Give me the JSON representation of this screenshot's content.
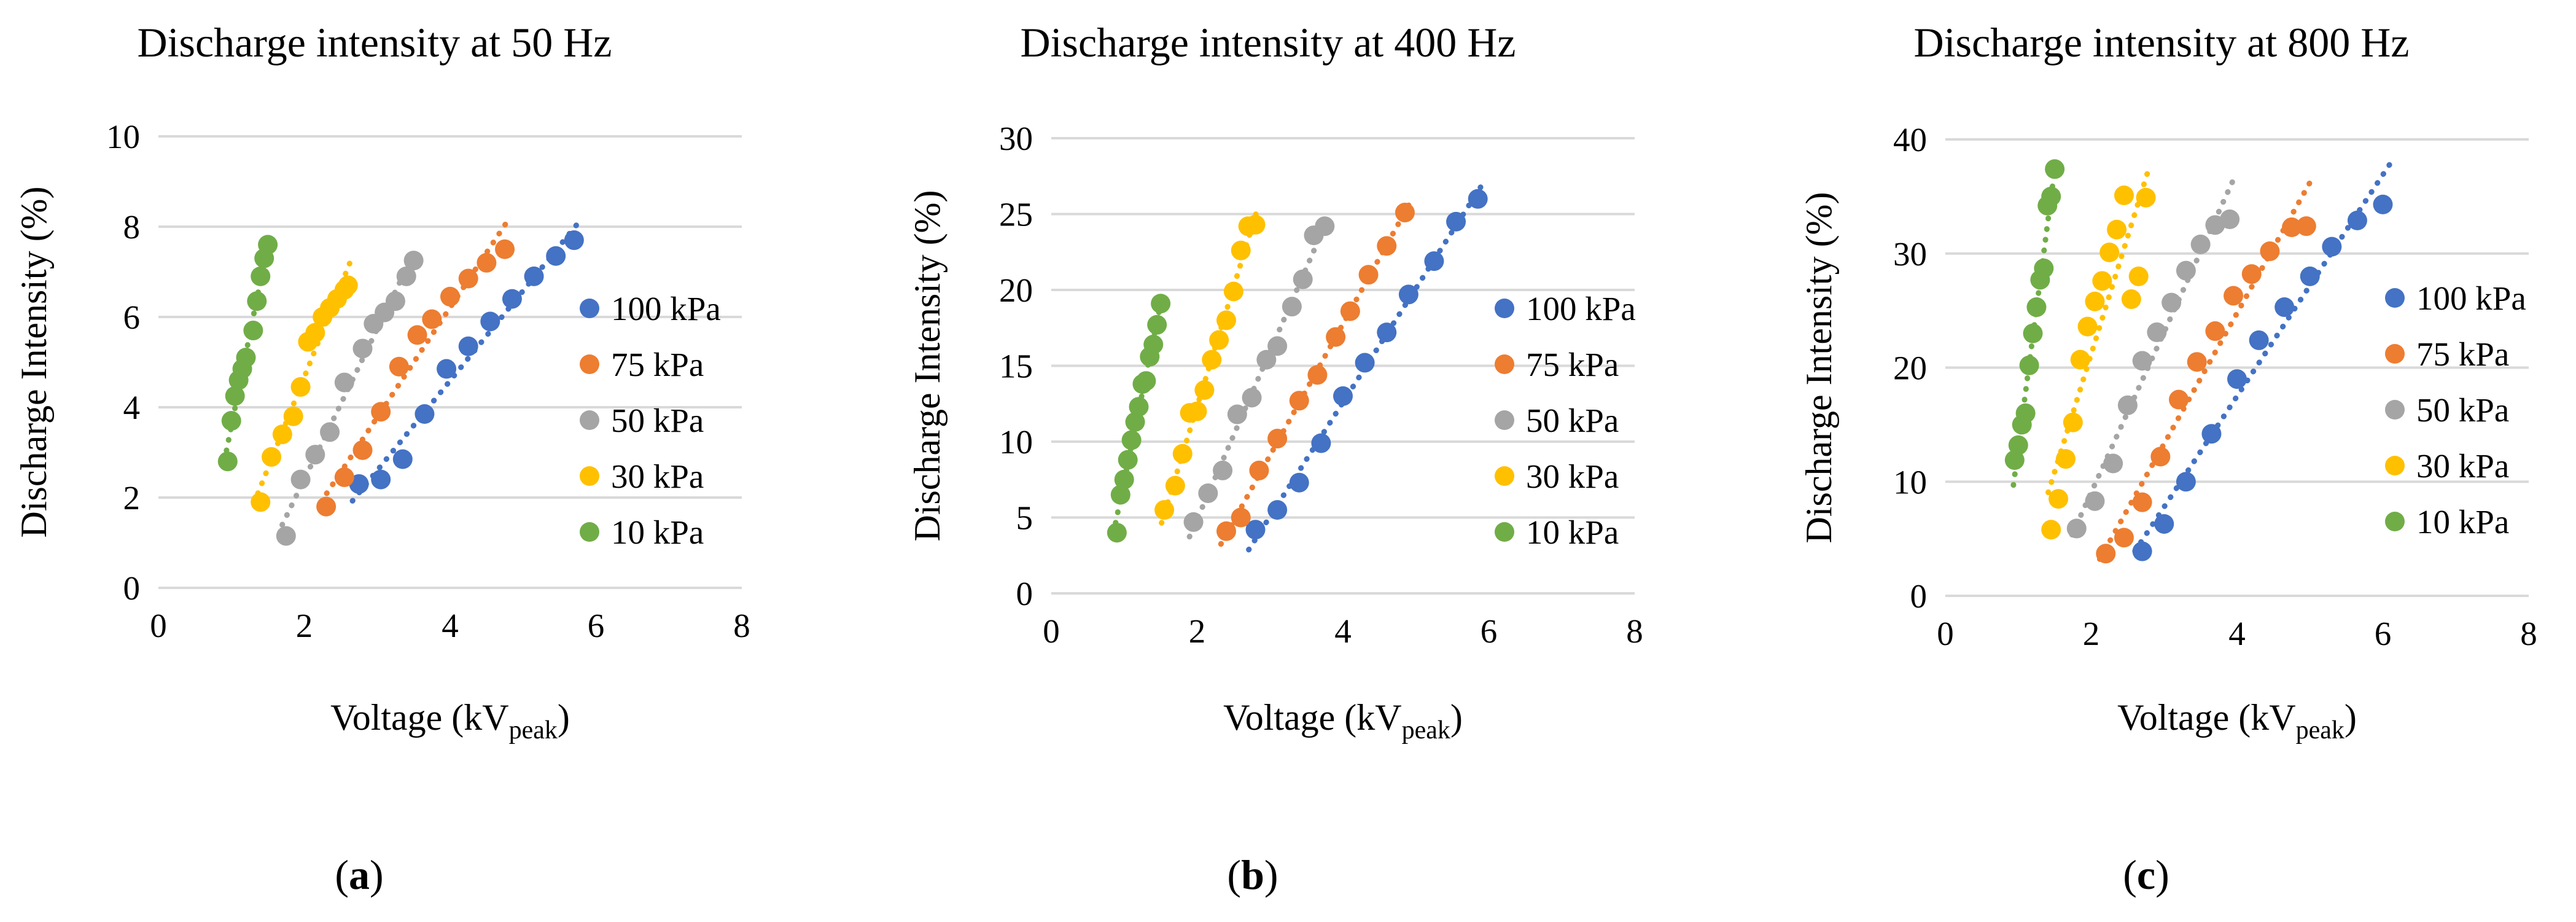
{
  "colors": {
    "100 kPa": "#4472C4",
    "75 kPa": "#ED7D31",
    "50 kPa": "#A5A5A5",
    "30 kPa": "#FFC000",
    "10 kPa": "#70AD47"
  },
  "chart_data": [
    {
      "type": "scatter",
      "panel_label": "(a)",
      "title": "Discharge intensity at 50 Hz",
      "xlabel": "Voltage (kV",
      "xlabel_sub": "peak",
      "xlabel_suffix": ")",
      "ylabel": "Discharge Intensity (%)",
      "xlim": [
        0,
        8
      ],
      "ylim": [
        0,
        10
      ],
      "xticks": [
        0,
        2,
        4,
        6,
        8
      ],
      "yticks": [
        0,
        2,
        4,
        6,
        8,
        10
      ],
      "grid": "horizontal",
      "legend_position": "right",
      "trendline": "linear",
      "series": [
        {
          "name": "100 kPa",
          "x": [
            2.75,
            3.05,
            3.35,
            3.65,
            3.95,
            4.25,
            4.55,
            4.85,
            5.15,
            5.45,
            5.7
          ],
          "y": [
            2.3,
            2.4,
            2.85,
            3.85,
            4.85,
            5.35,
            5.9,
            6.4,
            6.9,
            7.35,
            7.7
          ]
        },
        {
          "name": "75 kPa",
          "x": [
            2.3,
            2.55,
            2.8,
            3.05,
            3.3,
            3.55,
            3.75,
            4.0,
            4.25,
            4.5,
            4.75
          ],
          "y": [
            1.8,
            2.45,
            3.05,
            3.9,
            4.9,
            5.6,
            5.95,
            6.45,
            6.85,
            7.2,
            7.5
          ]
        },
        {
          "name": "50 kPa",
          "x": [
            1.75,
            1.95,
            2.15,
            2.35,
            2.55,
            2.8,
            2.95,
            3.1,
            3.25,
            3.4,
            3.5
          ],
          "y": [
            1.15,
            2.4,
            2.95,
            3.45,
            4.55,
            5.3,
            5.85,
            6.1,
            6.35,
            6.9,
            7.25
          ]
        },
        {
          "name": "30 kPa",
          "x": [
            1.4,
            1.55,
            1.7,
            1.85,
            1.95,
            2.05,
            2.15,
            2.25,
            2.35,
            2.45,
            2.55,
            2.6
          ],
          "y": [
            1.9,
            2.9,
            3.4,
            3.8,
            4.45,
            5.45,
            5.65,
            6.0,
            6.2,
            6.4,
            6.6,
            6.7
          ]
        },
        {
          "name": "10 kPa",
          "x": [
            0.95,
            1.0,
            1.05,
            1.1,
            1.15,
            1.2,
            1.3,
            1.35,
            1.4,
            1.45,
            1.5
          ],
          "y": [
            2.8,
            3.7,
            4.25,
            4.6,
            4.85,
            5.1,
            5.7,
            6.35,
            6.9,
            7.3,
            7.6
          ]
        }
      ]
    },
    {
      "type": "scatter",
      "panel_label": "(b)",
      "title": "Discharge intensity at 400 Hz",
      "xlabel": "Voltage (kV",
      "xlabel_sub": "peak",
      "xlabel_suffix": ")",
      "ylabel": "Discharge Intensity (%)",
      "xlim": [
        0,
        8
      ],
      "ylim": [
        0,
        30
      ],
      "xticks": [
        0,
        2,
        4,
        6,
        8
      ],
      "yticks": [
        0,
        5,
        10,
        15,
        20,
        25,
        30
      ],
      "grid": "horizontal",
      "legend_position": "right",
      "trendline": "linear",
      "series": [
        {
          "name": "100 kPa",
          "x": [
            2.8,
            3.1,
            3.4,
            3.7,
            4.0,
            4.3,
            4.6,
            4.9,
            5.25,
            5.55,
            5.85
          ],
          "y": [
            4.2,
            5.5,
            7.3,
            9.9,
            13.0,
            15.2,
            17.2,
            19.7,
            21.9,
            24.5,
            26.0
          ]
        },
        {
          "name": "75 kPa",
          "x": [
            2.4,
            2.6,
            2.85,
            3.1,
            3.4,
            3.65,
            3.9,
            4.1,
            4.35,
            4.6,
            4.85
          ],
          "y": [
            4.1,
            5.0,
            8.1,
            10.2,
            12.7,
            14.4,
            16.9,
            18.6,
            21.0,
            22.9,
            25.1
          ]
        },
        {
          "name": "50 kPa",
          "x": [
            1.95,
            2.15,
            2.35,
            2.55,
            2.75,
            2.95,
            3.1,
            3.3,
            3.45,
            3.6,
            3.75
          ],
          "y": [
            4.7,
            6.6,
            8.1,
            11.8,
            12.9,
            15.4,
            16.3,
            18.9,
            20.7,
            23.6,
            24.2
          ]
        },
        {
          "name": "30 kPa",
          "x": [
            1.55,
            1.7,
            1.8,
            1.9,
            2.0,
            2.1,
            2.2,
            2.3,
            2.4,
            2.5,
            2.6,
            2.7,
            2.8
          ],
          "y": [
            5.5,
            7.1,
            9.2,
            11.9,
            12.0,
            13.4,
            15.4,
            16.7,
            18.0,
            19.9,
            22.6,
            24.2,
            24.3
          ]
        },
        {
          "name": "10 kPa",
          "x": [
            0.9,
            0.95,
            1.0,
            1.05,
            1.1,
            1.15,
            1.2,
            1.25,
            1.3,
            1.35,
            1.4,
            1.45,
            1.5
          ],
          "y": [
            4.0,
            6.5,
            7.5,
            8.8,
            10.1,
            11.3,
            12.3,
            13.8,
            14.0,
            15.6,
            16.4,
            17.7,
            19.1
          ]
        }
      ]
    },
    {
      "type": "scatter",
      "panel_label": "(c)",
      "title": "Discharge intensity at 800 Hz",
      "xlabel": "Voltage (kV",
      "xlabel_sub": "peak",
      "xlabel_suffix": ")",
      "ylabel": "Discharge Intensity (%)",
      "xlim": [
        0,
        8
      ],
      "ylim": [
        0,
        40
      ],
      "xticks": [
        0,
        2,
        4,
        6,
        8
      ],
      "yticks": [
        0,
        10,
        20,
        30,
        40
      ],
      "grid": "horizontal",
      "legend_position": "right",
      "trendline": "linear",
      "series": [
        {
          "name": "100 kPa",
          "x": [
            2.7,
            3.0,
            3.3,
            3.65,
            4.0,
            4.3,
            4.65,
            5.0,
            5.3,
            5.65,
            6.0
          ],
          "y": [
            3.9,
            6.3,
            10.0,
            14.2,
            19.0,
            22.4,
            25.3,
            28.0,
            30.6,
            32.9,
            34.3
          ]
        },
        {
          "name": "75 kPa",
          "x": [
            2.2,
            2.45,
            2.7,
            2.95,
            3.2,
            3.45,
            3.7,
            3.95,
            4.2,
            4.45,
            4.75,
            4.95
          ],
          "y": [
            3.7,
            5.1,
            8.2,
            12.2,
            17.2,
            20.5,
            23.2,
            26.3,
            28.2,
            30.2,
            32.3,
            32.4
          ]
        },
        {
          "name": "50 kPa",
          "x": [
            1.8,
            2.05,
            2.3,
            2.5,
            2.7,
            2.9,
            3.1,
            3.3,
            3.5,
            3.7,
            3.9
          ],
          "y": [
            5.9,
            8.3,
            11.6,
            16.7,
            20.6,
            23.1,
            25.7,
            28.5,
            30.8,
            32.5,
            33.0
          ]
        },
        {
          "name": "30 kPa",
          "x": [
            1.45,
            1.55,
            1.65,
            1.75,
            1.85,
            1.95,
            2.05,
            2.15,
            2.25,
            2.35,
            2.45,
            2.55,
            2.65,
            2.75
          ],
          "y": [
            5.8,
            8.5,
            12.0,
            15.2,
            20.7,
            23.6,
            25.8,
            27.6,
            30.1,
            32.1,
            35.1,
            26.0,
            28.0,
            34.9
          ]
        },
        {
          "name": "10 kPa",
          "x": [
            0.95,
            1.0,
            1.05,
            1.1,
            1.15,
            1.2,
            1.25,
            1.3,
            1.35,
            1.4,
            1.45,
            1.5
          ],
          "y": [
            11.9,
            13.2,
            15.0,
            16.0,
            20.2,
            23.0,
            25.3,
            27.7,
            28.7,
            34.2,
            35.0,
            37.4
          ]
        }
      ]
    }
  ]
}
